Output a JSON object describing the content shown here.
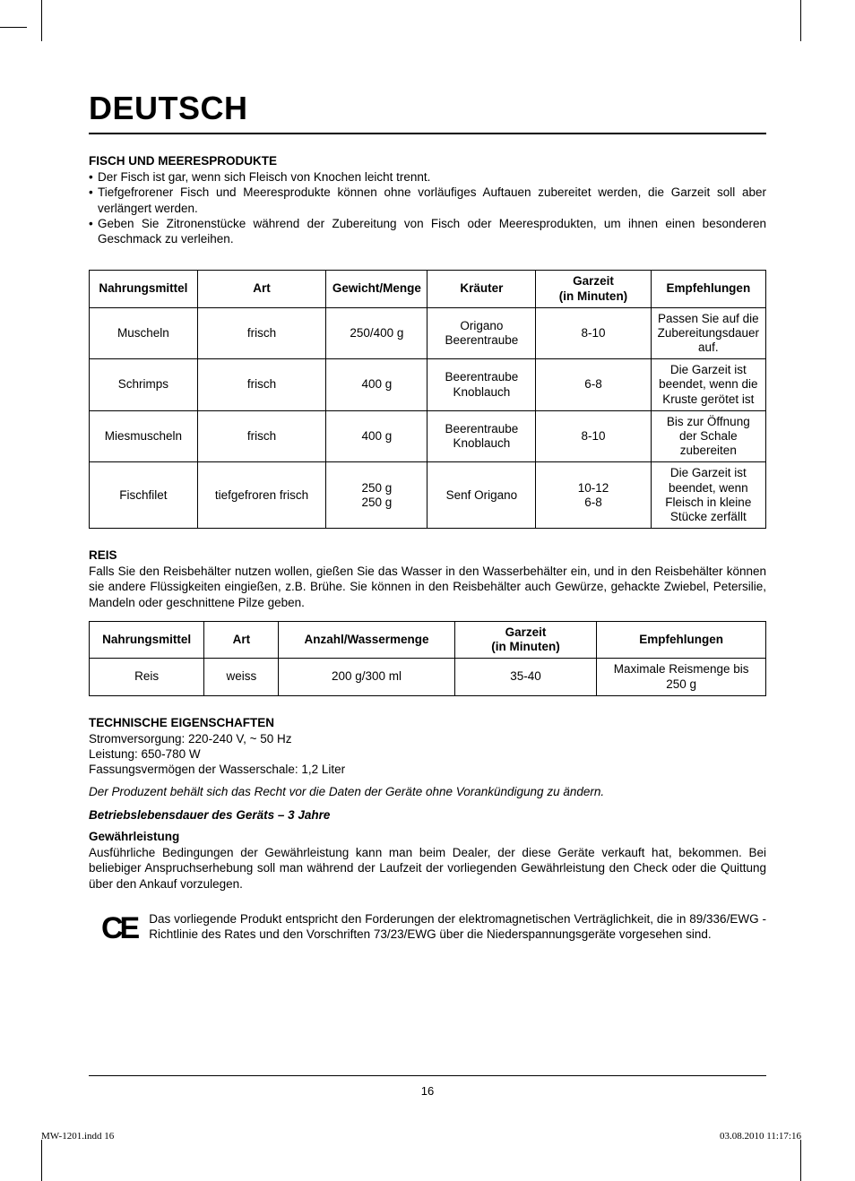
{
  "header": {
    "language": "DEUTSCH"
  },
  "fish": {
    "heading": "FISCH UND MEERESPRODUKTE",
    "bullets": [
      "Der Fisch ist gar, wenn sich Fleisch von Knochen leicht trennt.",
      "Tiefgefrorener Fisch und Meeresprodukte können ohne vorläufiges Auftauen zubereitet werden, die Garzeit soll aber verlängert werden.",
      "Geben Sie Zitronenstücke während der Zubereitung von Fisch oder Meeresprodukten, um ihnen einen besonderen Geschmack zu verleihen."
    ],
    "table": {
      "columns": [
        "Nahrungsmittel",
        "Art",
        "Gewicht/Menge",
        "Kräuter",
        "Garzeit\n(in Minuten)",
        "Empfehlungen"
      ],
      "col_widths": [
        "16%",
        "19%",
        "15%",
        "16%",
        "17%",
        "17%"
      ],
      "rows": [
        [
          "Muscheln",
          "frisch",
          "250/400 g",
          "Origano\nBeerentraube",
          "8-10",
          "Passen Sie auf die Zubereitungsdauer auf."
        ],
        [
          "Schrimps",
          "frisch",
          "400 g",
          "Beerentraube\nKnoblauch",
          "6-8",
          "Die Garzeit ist beendet, wenn die Kruste gerötet ist"
        ],
        [
          "Miesmuscheln",
          "frisch",
          "400 g",
          "Beerentraube\nKnoblauch",
          "8-10",
          "Bis zur Öffnung der Schale zubereiten"
        ],
        [
          "Fischfilet",
          "tiefgefroren    frisch",
          "250 g\n250 g",
          "Senf   Origano",
          "10-12\n6-8",
          "Die Garzeit ist beendet, wenn Fleisch in kleine Stücke zerfällt"
        ]
      ]
    }
  },
  "rice": {
    "heading": "REIS",
    "text": "Falls Sie den  Reisbehälter nutzen wollen, gießen Sie das Wasser in den Wasserbehälter ein, und in den Reisbehälter können sie andere Flüssigkeiten eingießen, z.B. Brühe. Sie können in den  Reisbehälter auch Gewürze, gehackte Zwiebel, Petersilie, Mandeln oder geschnittene Pilze geben.",
    "table": {
      "columns": [
        "Nahrungsmittel",
        "Art",
        "Anzahl/Wassermenge",
        "Garzeit\n(in Minuten)",
        "Empfehlungen"
      ],
      "col_widths": [
        "17%",
        "11%",
        "26%",
        "21%",
        "25%"
      ],
      "rows": [
        [
          "Reis",
          "weiss",
          "200 g/300 ml",
          "35-40",
          "Maximale Reismenge bis 250 g"
        ]
      ]
    }
  },
  "tech": {
    "heading": "TECHNISCHE EIGENSCHAFTEN",
    "lines": [
      "Stromversorgung: 220-240 V, ~ 50 Hz",
      "Leistung: 650-780 W",
      "Fassungsvermögen der Wasserschale: 1,2 Liter"
    ],
    "disclaimer": "Der Produzent behält sich das Recht vor die Daten der Geräte ohne Vorankündigung zu ändern.",
    "lifespan": "Betriebslebensdauer des Geräts – 3 Jahre"
  },
  "warranty": {
    "heading": "Gewährleistung",
    "text": "Ausführliche Bedingungen der Gewährleistung kann man beim Dealer, der diese Geräte verkauft hat, bekommen. Bei beliebiger Anspruchserhebung soll man während der Laufzeit der vorliegenden Gewährleistung den Check oder die Quittung über den Ankauf vorzulegen."
  },
  "ce": {
    "mark": "CE",
    "text": "Das vorliegende Produkt  entspricht den Forderungen der elektromagnetischen Verträglichkeit, die in 89/336/EWG -Richtlinie des Rates und den Vorschriften 73/23/EWG über die Niederspannungsgeräte vorgesehen sind."
  },
  "footer": {
    "page_number": "16",
    "file_ref": "MW-1201.indd   16",
    "timestamp": "03.08.2010   11:17:16"
  }
}
